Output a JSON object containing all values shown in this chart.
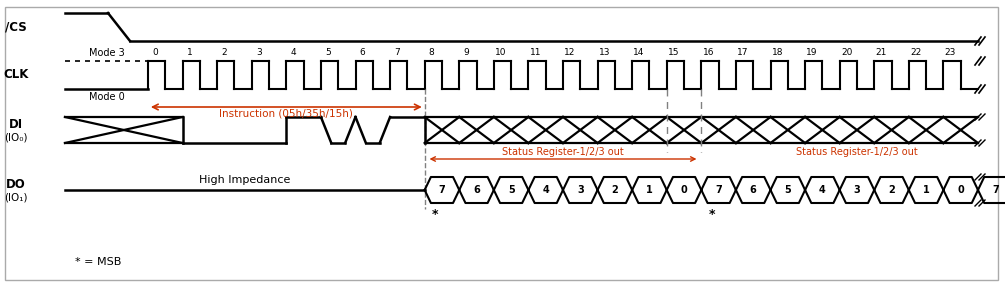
{
  "bg_color": "#ffffff",
  "clk_labels": [
    "0",
    "1",
    "2",
    "3",
    "4",
    "5",
    "6",
    "7",
    "8",
    "9",
    "10",
    "11",
    "12",
    "13",
    "14",
    "15",
    "16",
    "17",
    "18",
    "19",
    "20",
    "21",
    "22",
    "23"
  ],
  "do_labels": [
    "7",
    "6",
    "5",
    "4",
    "3",
    "2",
    "1",
    "0",
    "7",
    "6",
    "5",
    "4",
    "3",
    "2",
    "1",
    "0",
    "7"
  ],
  "instruction_text": "Instruction (05h/35h/15h)",
  "high_impedance_text": "High Impedance",
  "status_reg_text1": "Status Register-1/2/3 out",
  "status_reg_text2": "Status Register-1/2/3 out",
  "mode3_text": "Mode 3",
  "mode0_text": "Mode 0",
  "msb_text": "* = MSB",
  "line_color": "#000000",
  "dashed_color": "#808080",
  "annotation_color": "#cc3300"
}
